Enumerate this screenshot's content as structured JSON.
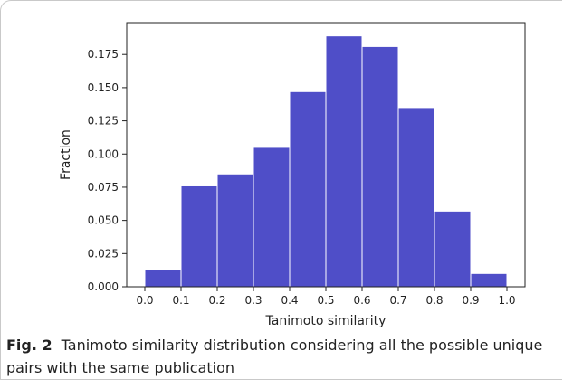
{
  "figure": {
    "label": "Fig. 2",
    "caption": "Tanimoto similarity distribution considering all the possible unique pairs with the same publication"
  },
  "colors": {
    "bar": "#4f4ec8",
    "bar_edge": "#ffffff",
    "axis": "#222222"
  },
  "chart_data": {
    "type": "bar",
    "title": "",
    "xlabel": "Tanimoto similarity",
    "ylabel": "Fraction",
    "bins": [
      {
        "x0": 0.0,
        "x1": 0.1,
        "value": 0.013
      },
      {
        "x0": 0.1,
        "x1": 0.2,
        "value": 0.076
      },
      {
        "x0": 0.2,
        "x1": 0.3,
        "value": 0.085
      },
      {
        "x0": 0.3,
        "x1": 0.4,
        "value": 0.105
      },
      {
        "x0": 0.4,
        "x1": 0.5,
        "value": 0.147
      },
      {
        "x0": 0.5,
        "x1": 0.6,
        "value": 0.189
      },
      {
        "x0": 0.6,
        "x1": 0.7,
        "value": 0.181
      },
      {
        "x0": 0.7,
        "x1": 0.8,
        "value": 0.135
      },
      {
        "x0": 0.8,
        "x1": 0.9,
        "value": 0.057
      },
      {
        "x0": 0.9,
        "x1": 1.0,
        "value": 0.01
      }
    ],
    "xlim": [
      -0.05,
      1.05
    ],
    "ylim": [
      0,
      0.199
    ],
    "xticks": [
      0.0,
      0.1,
      0.2,
      0.3,
      0.4,
      0.5,
      0.6,
      0.7,
      0.8,
      0.9,
      1.0
    ],
    "xtick_labels": [
      "0.0",
      "0.1",
      "0.2",
      "0.3",
      "0.4",
      "0.5",
      "0.6",
      "0.7",
      "0.8",
      "0.9",
      "1.0"
    ],
    "yticks": [
      0.0,
      0.025,
      0.05,
      0.075,
      0.1,
      0.125,
      0.15,
      0.175
    ],
    "ytick_labels": [
      "0.000",
      "0.025",
      "0.050",
      "0.075",
      "0.100",
      "0.125",
      "0.150",
      "0.175"
    ],
    "grid": false,
    "legend": "none"
  }
}
